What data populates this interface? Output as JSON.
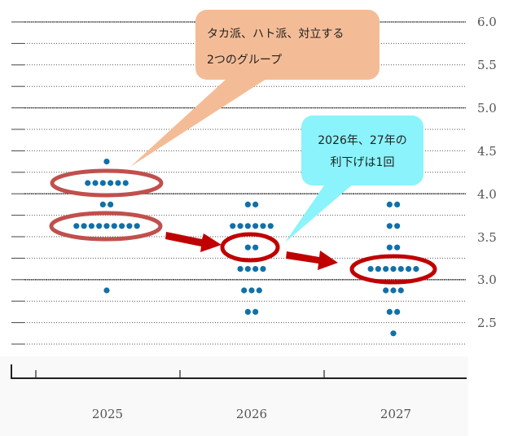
{
  "chart_data": {
    "type": "scatter",
    "subtype": "dot-plot",
    "title": "",
    "xlabel": "",
    "ylabel": "",
    "categories": [
      "2025",
      "2026",
      "2027"
    ],
    "yticks": [
      "6.0",
      "5.5",
      "5.0",
      "4.5",
      "4.0",
      "3.5",
      "3.0",
      "2.5"
    ],
    "ylim": [
      2.25,
      6.0
    ],
    "grid": true,
    "series": [
      {
        "name": "2025",
        "points": [
          {
            "value": 4.375,
            "count": 1
          },
          {
            "value": 4.125,
            "count": 6
          },
          {
            "value": 3.875,
            "count": 2
          },
          {
            "value": 3.625,
            "count": 9
          },
          {
            "value": 2.875,
            "count": 1
          }
        ]
      },
      {
        "name": "2026",
        "points": [
          {
            "value": 3.875,
            "count": 2
          },
          {
            "value": 3.625,
            "count": 6
          },
          {
            "value": 3.375,
            "count": 2
          },
          {
            "value": 3.125,
            "count": 4
          },
          {
            "value": 2.875,
            "count": 3
          },
          {
            "value": 2.625,
            "count": 2
          }
        ]
      },
      {
        "name": "2027",
        "points": [
          {
            "value": 3.875,
            "count": 2
          },
          {
            "value": 3.625,
            "count": 2
          },
          {
            "value": 3.375,
            "count": 2
          },
          {
            "value": 3.125,
            "count": 7
          },
          {
            "value": 2.875,
            "count": 3
          },
          {
            "value": 2.625,
            "count": 2
          },
          {
            "value": 2.375,
            "count": 1
          }
        ]
      }
    ],
    "annotations": [
      {
        "text": "タカ派、ハト派、対立する 2つのグループ",
        "target": "2025 at 4.125 and 3.625"
      },
      {
        "text": "2026年、27年の 利下げは1回",
        "target": "2026 at 3.375, 2027 at 3.125"
      }
    ],
    "highlights": [
      {
        "category": "2025",
        "value": 4.125,
        "shape": "ellipse"
      },
      {
        "category": "2025",
        "value": 3.625,
        "shape": "ellipse"
      },
      {
        "category": "2026",
        "value": 3.375,
        "shape": "ellipse"
      },
      {
        "category": "2027",
        "value": 3.125,
        "shape": "ellipse"
      }
    ]
  },
  "colors": {
    "dot": "#1170a8",
    "ellipse_2025": "#c0504d",
    "ellipse_highlight": "#c00000",
    "arrow": "#c00000",
    "callout_orange": "#f4bc96",
    "callout_cyan": "#8af3fb",
    "grid": "#333333",
    "axis": "#222222"
  },
  "callouts": {
    "hawk_dove": {
      "line1": "タカ派、ハト派、対立する",
      "line2": "2つのグループ"
    },
    "one_cut": {
      "line1": "2026年、27年の",
      "line2": "利下げは1回"
    }
  },
  "axis": {
    "y_labels": [
      "6.0",
      "5.5",
      "5.0",
      "4.5",
      "4.0",
      "3.5",
      "3.0",
      "2.5"
    ],
    "x_labels": [
      "2025",
      "2026",
      "2027"
    ]
  }
}
